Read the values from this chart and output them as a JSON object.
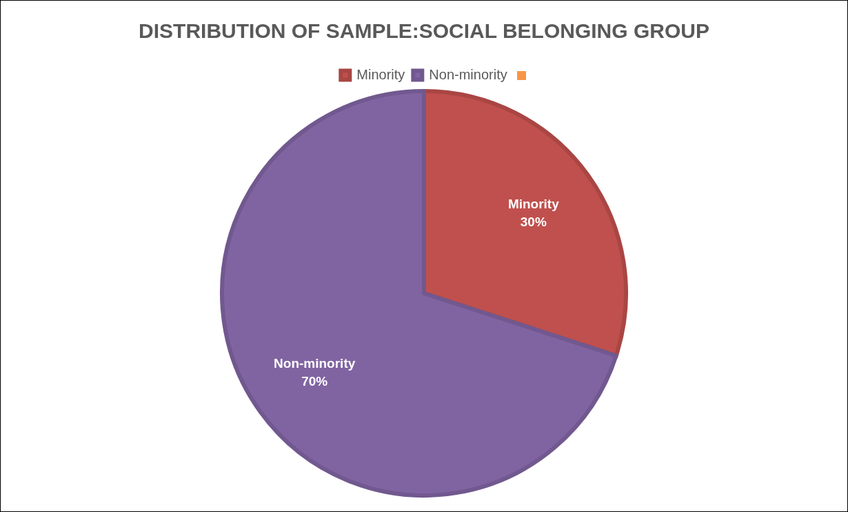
{
  "chart_data": {
    "type": "pie",
    "title": "DISTRIBUTION OF SAMPLE:SOCIAL BELONGING GROUP",
    "categories": [
      "Minority",
      "Non-minority"
    ],
    "values": [
      30,
      70
    ],
    "colors": [
      "#c0504d",
      "#8064a2"
    ],
    "value_labels": [
      "30%",
      "70%"
    ],
    "legend": "top"
  }
}
